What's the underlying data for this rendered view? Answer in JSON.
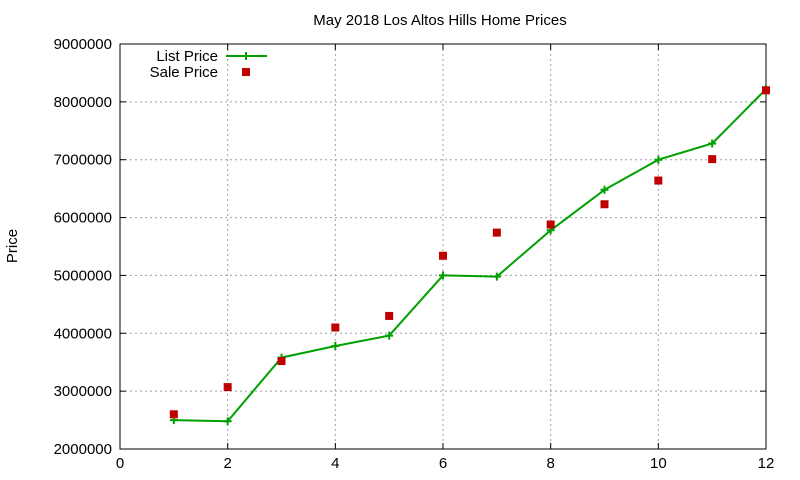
{
  "chart_data": {
    "type": "line",
    "title": "May 2018 Los Altos Hills Home Prices",
    "xlabel": "",
    "ylabel": "Price",
    "xlim": [
      0,
      12
    ],
    "ylim": [
      2000000,
      9000000
    ],
    "xticks": [
      0,
      2,
      4,
      6,
      8,
      10,
      12
    ],
    "yticks": [
      2000000,
      3000000,
      4000000,
      5000000,
      6000000,
      7000000,
      8000000,
      9000000
    ],
    "xtick_labels": [
      "0",
      "2",
      "4",
      "6",
      "8",
      "10",
      "12"
    ],
    "ytick_labels": [
      "2000000",
      "3000000",
      "4000000",
      "5000000",
      "6000000",
      "7000000",
      "8000000",
      "9000000"
    ],
    "grid": true,
    "legend_position": "top-left",
    "series": [
      {
        "name": "List Price",
        "style": "line+cross",
        "color": "#00a000",
        "x": [
          1,
          2,
          3,
          4,
          5,
          6,
          7,
          8,
          9,
          10,
          11,
          12
        ],
        "y": [
          2500000,
          2480000,
          3580000,
          3780000,
          3960000,
          5000000,
          4980000,
          5780000,
          6480000,
          7000000,
          7280000,
          8220000
        ]
      },
      {
        "name": "Sale Price",
        "style": "square",
        "color": "#c00000",
        "x": [
          1,
          2,
          3,
          4,
          5,
          6,
          7,
          8,
          9,
          10,
          11,
          12
        ],
        "y": [
          2600000,
          3070000,
          3520000,
          4100000,
          4300000,
          5340000,
          5740000,
          5880000,
          6230000,
          6640000,
          7010000,
          8200000
        ]
      }
    ]
  }
}
